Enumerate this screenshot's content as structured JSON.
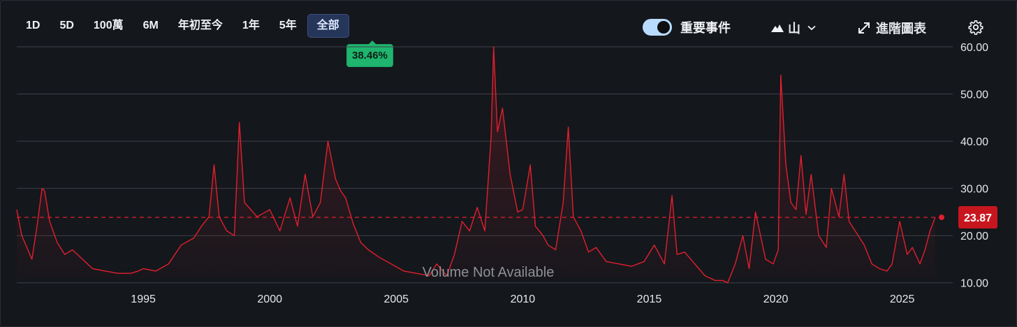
{
  "toolbar": {
    "ranges": [
      "1D",
      "5D",
      "100萬",
      "6M",
      "年初至今",
      "1年",
      "5年",
      "全部"
    ],
    "active_range": "全部",
    "change_badge": "38.46%",
    "events_label": "重要事件",
    "events_enabled": true,
    "chart_style_label": "山",
    "advanced_label": "進階圖表",
    "icons": {
      "mountain": "mountain-icon",
      "chevron": "chevron-down-icon",
      "expand": "expand-icon",
      "settings": "gear-icon"
    }
  },
  "volume_note": "Volume Not Available",
  "colors": {
    "background": "#14171c",
    "line": "#e0202e",
    "last_price_badge": "#c8161f",
    "change_badge": "#1fb56e",
    "gridline": "#3c4048"
  },
  "chart_data": {
    "type": "area",
    "xlabel": "",
    "ylabel": "",
    "xlim": [
      1990.0,
      2026.5
    ],
    "ylim": [
      7.0,
      64.0
    ],
    "y_ticks": [
      10,
      20,
      30,
      40,
      50,
      60
    ],
    "y_tick_labels": [
      "10.00",
      "20.00",
      "30.00",
      "40.00",
      "50.00",
      "60.00"
    ],
    "x_ticks": [
      1995,
      2000,
      2005,
      2010,
      2015,
      2020,
      2025
    ],
    "x_tick_labels": [
      "1995",
      "2000",
      "2005",
      "2010",
      "2015",
      "2020",
      "2025"
    ],
    "last_value": 23.87,
    "last_value_label": "23.87",
    "reference_line": 23.87,
    "grid": true,
    "series": [
      {
        "x": [
          1990.0,
          1990.2,
          1990.4,
          1990.6,
          1990.8,
          1991.0,
          1991.1,
          1991.3,
          1991.6,
          1991.9,
          1992.2,
          1992.6,
          1993.0,
          1993.5,
          1994.0,
          1994.5,
          1994.8,
          1995.0,
          1995.5,
          1996.0,
          1996.5,
          1997.0,
          1997.3,
          1997.6,
          1997.8,
          1998.0,
          1998.3,
          1998.6,
          1998.8,
          1999.0,
          1999.5,
          2000.0,
          2000.4,
          2000.8,
          2001.1,
          2001.4,
          2001.7,
          2002.0,
          2002.3,
          2002.6,
          2002.8,
          2003.0,
          2003.3,
          2003.6,
          2003.9,
          2004.3,
          2004.8,
          2005.3,
          2005.8,
          2006.3,
          2006.6,
          2007.0,
          2007.3,
          2007.6,
          2007.9,
          2008.2,
          2008.5,
          2008.75,
          2008.85,
          2009.0,
          2009.2,
          2009.5,
          2009.8,
          2010.0,
          2010.3,
          2010.5,
          2010.8,
          2011.0,
          2011.3,
          2011.6,
          2011.8,
          2012.0,
          2012.3,
          2012.6,
          2012.9,
          2013.3,
          2013.8,
          2014.3,
          2014.8,
          2015.2,
          2015.6,
          2015.9,
          2016.1,
          2016.4,
          2016.8,
          2017.2,
          2017.6,
          2017.9,
          2018.1,
          2018.4,
          2018.7,
          2018.95,
          2019.2,
          2019.6,
          2019.9,
          2020.1,
          2020.2,
          2020.4,
          2020.6,
          2020.8,
          2021.0,
          2021.2,
          2021.4,
          2021.7,
          2022.0,
          2022.2,
          2022.5,
          2022.7,
          2022.9,
          2023.2,
          2023.5,
          2023.8,
          2024.1,
          2024.4,
          2024.6,
          2024.9,
          2025.2,
          2025.4,
          2025.7,
          2025.9,
          2026.1,
          2026.3
        ],
        "values": [
          25.5,
          20.0,
          17.5,
          15.0,
          22.0,
          30.0,
          29.5,
          23.0,
          18.5,
          16.0,
          17.0,
          15.0,
          13.0,
          12.5,
          12.0,
          12.0,
          12.5,
          13.0,
          12.5,
          14.0,
          18.0,
          19.5,
          22.0,
          24.0,
          35.0,
          24.0,
          21.0,
          20.0,
          44.0,
          27.0,
          24.0,
          25.5,
          21.0,
          28.0,
          22.0,
          33.0,
          24.0,
          27.0,
          40.0,
          32.0,
          29.5,
          28.0,
          22.5,
          18.5,
          17.0,
          15.5,
          14.0,
          12.5,
          12.0,
          11.5,
          14.0,
          11.5,
          16.0,
          23.0,
          21.0,
          26.0,
          21.0,
          41.0,
          60.0,
          42.0,
          47.0,
          33.0,
          25.0,
          25.5,
          35.0,
          22.0,
          20.0,
          18.0,
          17.0,
          27.0,
          43.0,
          24.0,
          21.0,
          16.5,
          17.5,
          14.5,
          14.0,
          13.5,
          14.5,
          18.0,
          14.0,
          28.5,
          16.0,
          16.5,
          14.0,
          11.5,
          10.5,
          10.5,
          10.0,
          14.0,
          20.0,
          13.0,
          25.0,
          15.0,
          14.0,
          17.0,
          54.0,
          35.0,
          27.0,
          25.5,
          37.0,
          24.5,
          33.0,
          20.0,
          17.5,
          30.0,
          24.0,
          33.0,
          23.0,
          20.5,
          18.0,
          14.0,
          13.0,
          12.5,
          14.0,
          23.0,
          16.0,
          17.5,
          14.0,
          17.0,
          21.0,
          23.87
        ]
      }
    ]
  }
}
